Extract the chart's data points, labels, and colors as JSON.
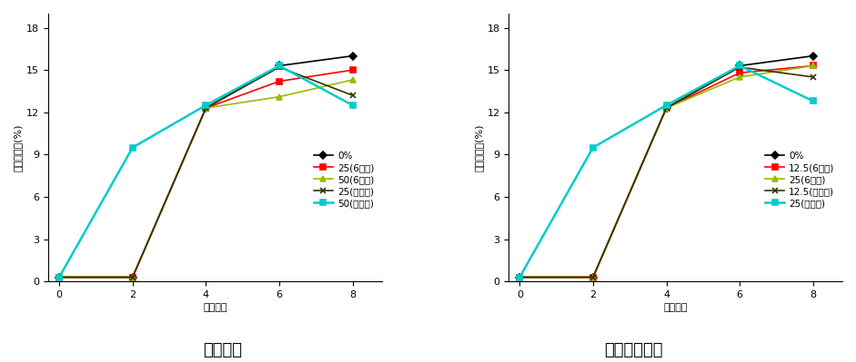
{
  "x": [
    0,
    2,
    4,
    6,
    8
  ],
  "left": {
    "title": "매실첨가",
    "series": [
      {
        "label": "0%",
        "color": "#000000",
        "marker": "D",
        "ms": 4,
        "lw": 1.2,
        "values": [
          0.3,
          0.3,
          12.3,
          15.3,
          16.0
        ]
      },
      {
        "label": "25(6일차)",
        "color": "#ff0000",
        "marker": "s",
        "ms": 4,
        "lw": 1.2,
        "values": [
          0.3,
          0.3,
          12.3,
          14.2,
          15.0
        ]
      },
      {
        "label": "50(6일차)",
        "color": "#99bb00",
        "marker": "^",
        "ms": 4,
        "lw": 1.2,
        "values": [
          0.3,
          0.3,
          12.3,
          13.1,
          14.3
        ]
      },
      {
        "label": "25(증류전)",
        "color": "#333300",
        "marker": "x",
        "ms": 5,
        "lw": 1.2,
        "values": [
          0.3,
          0.3,
          12.3,
          15.2,
          13.2
        ]
      },
      {
        "label": "50(증류전)",
        "color": "#00cccc",
        "marker": "s",
        "ms": 4,
        "lw": 1.8,
        "values": [
          0.3,
          9.5,
          12.5,
          15.3,
          12.5
        ]
      }
    ]
  },
  "right": {
    "title": "남해약쑥첨가",
    "series": [
      {
        "label": "0%",
        "color": "#000000",
        "marker": "D",
        "ms": 4,
        "lw": 1.2,
        "values": [
          0.3,
          0.3,
          12.3,
          15.3,
          16.0
        ]
      },
      {
        "label": "12.5(6일차)",
        "color": "#ff0000",
        "marker": "s",
        "ms": 4,
        "lw": 1.2,
        "values": [
          0.3,
          0.3,
          12.3,
          14.8,
          15.3
        ]
      },
      {
        "label": "25(6일차)",
        "color": "#99bb00",
        "marker": "^",
        "ms": 4,
        "lw": 1.2,
        "values": [
          0.3,
          0.3,
          12.3,
          14.5,
          15.3
        ]
      },
      {
        "label": "12.5(증류전)",
        "color": "#333300",
        "marker": "x",
        "ms": 5,
        "lw": 1.2,
        "values": [
          0.3,
          0.3,
          12.3,
          15.2,
          14.5
        ]
      },
      {
        "label": "25(증류전)",
        "color": "#00cccc",
        "marker": "s",
        "ms": 4,
        "lw": 1.8,
        "values": [
          0.3,
          9.5,
          12.5,
          15.3,
          12.8
        ]
      }
    ]
  },
  "ylabel": "알코올함량(%)",
  "xlabel": "발효기간",
  "ylim": [
    0,
    19
  ],
  "yticks": [
    0,
    3,
    6,
    9,
    12,
    15,
    18
  ],
  "xticks": [
    0,
    2,
    4,
    6,
    8
  ],
  "background": "#ffffff",
  "subtitle_fontsize": 13,
  "label_fontsize": 8,
  "tick_fontsize": 8,
  "legend_fontsize": 7.5
}
